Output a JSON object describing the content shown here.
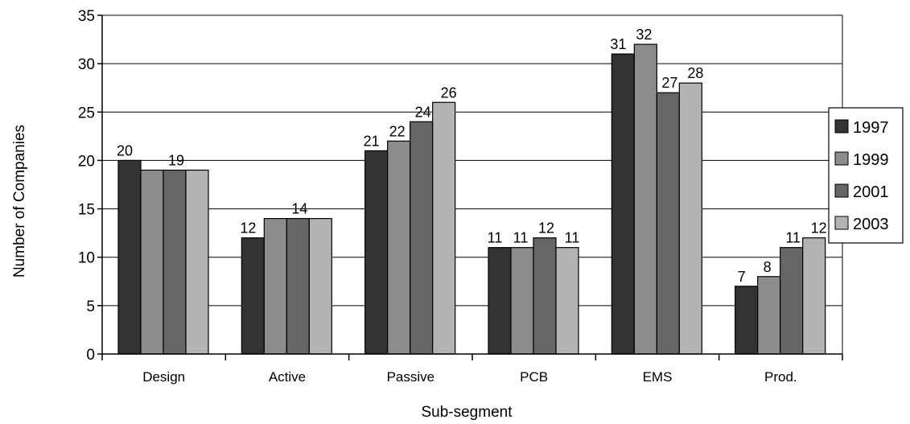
{
  "chart_data": {
    "type": "bar",
    "title": "",
    "xlabel": "Sub-segment",
    "ylabel": "Number of Companies",
    "ylim": [
      0,
      35
    ],
    "yticks": [
      0,
      5,
      10,
      15,
      20,
      25,
      30,
      35
    ],
    "grid": true,
    "legend_position": "right",
    "categories": [
      "Design",
      "Active",
      "Passive",
      "PCB",
      "EMS",
      "Prod."
    ],
    "series": [
      {
        "name": "1997",
        "color": "#333333",
        "values": [
          20,
          12,
          21,
          11,
          31,
          7
        ]
      },
      {
        "name": "1999",
        "color": "#8c8c8c",
        "values": [
          19,
          14,
          22,
          11,
          32,
          8
        ]
      },
      {
        "name": "2001",
        "color": "#666666",
        "values": [
          19,
          14,
          24,
          12,
          27,
          11
        ]
      },
      {
        "name": "2003",
        "color": "#b3b3b3",
        "values": [
          19,
          14,
          26,
          11,
          28,
          12
        ]
      }
    ],
    "data_labels": [
      [
        "20",
        null,
        "19",
        null
      ],
      [
        "12",
        null,
        "14",
        null
      ],
      [
        "21",
        "22",
        "24",
        "26"
      ],
      [
        "11",
        "11",
        "12",
        "11"
      ],
      [
        "31",
        "32",
        "27",
        "28"
      ],
      [
        "7",
        "8",
        "11",
        "12"
      ]
    ]
  }
}
